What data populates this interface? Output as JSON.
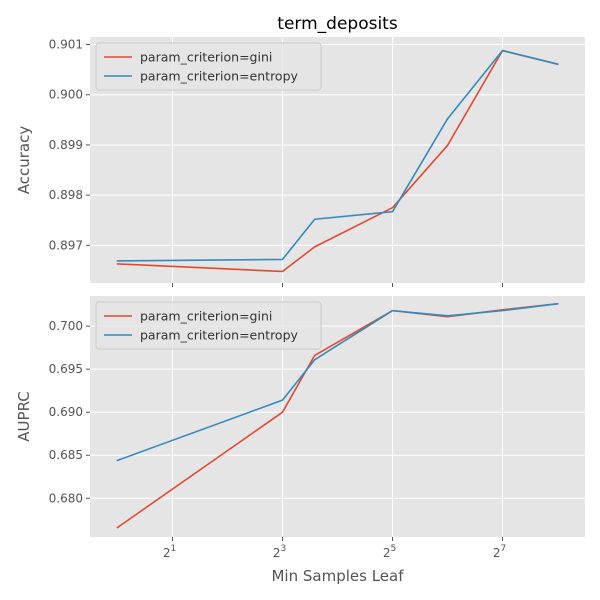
{
  "chart_data": [
    {
      "type": "line",
      "title": "term_deposits",
      "xlabel": "",
      "ylabel": "Accuracy",
      "x_scale": "log2",
      "x": [
        1,
        8,
        12,
        32,
        64,
        128,
        256
      ],
      "xlim": [
        0.707,
        362
      ],
      "xticks": [
        {
          "value": 2,
          "base": "2",
          "exp": "1"
        },
        {
          "value": 8,
          "base": "2",
          "exp": "3"
        },
        {
          "value": 32,
          "base": "2",
          "exp": "5"
        },
        {
          "value": 128,
          "base": "2",
          "exp": "7"
        }
      ],
      "show_xtick_labels": false,
      "ylim": [
        0.89625,
        0.90115
      ],
      "yticks": [
        {
          "value": 0.897,
          "label": "0.897"
        },
        {
          "value": 0.898,
          "label": "0.898"
        },
        {
          "value": 0.899,
          "label": "0.899"
        },
        {
          "value": 0.9,
          "label": "0.900"
        },
        {
          "value": 0.901,
          "label": "0.901"
        }
      ],
      "grid": true,
      "legend": "upper-left",
      "series": [
        {
          "name": "param_criterion=gini",
          "color": "#e24a33",
          "values": [
            0.89663,
            0.89648,
            0.89697,
            0.89775,
            0.89899,
            0.90088,
            0.90061
          ]
        },
        {
          "name": "param_criterion=entropy",
          "color": "#348abd",
          "values": [
            0.89669,
            0.89672,
            0.89752,
            0.89767,
            0.89952,
            0.90088,
            0.90061
          ]
        }
      ]
    },
    {
      "type": "line",
      "title": "",
      "xlabel": "Min Samples Leaf",
      "ylabel": "AUPRC",
      "x_scale": "log2",
      "x": [
        1,
        8,
        12,
        32,
        64,
        128,
        256
      ],
      "xlim": [
        0.707,
        362
      ],
      "xticks": [
        {
          "value": 2,
          "base": "2",
          "exp": "1"
        },
        {
          "value": 8,
          "base": "2",
          "exp": "3"
        },
        {
          "value": 32,
          "base": "2",
          "exp": "5"
        },
        {
          "value": 128,
          "base": "2",
          "exp": "7"
        }
      ],
      "show_xtick_labels": true,
      "ylim": [
        0.6755,
        0.7035
      ],
      "yticks": [
        {
          "value": 0.68,
          "label": "0.680"
        },
        {
          "value": 0.685,
          "label": "0.685"
        },
        {
          "value": 0.69,
          "label": "0.690"
        },
        {
          "value": 0.695,
          "label": "0.695"
        },
        {
          "value": 0.7,
          "label": "0.700"
        }
      ],
      "grid": true,
      "legend": "upper-left",
      "series": [
        {
          "name": "param_criterion=gini",
          "color": "#e24a33",
          "values": [
            0.6766,
            0.69,
            0.6966,
            0.7018,
            0.7011,
            0.7019,
            0.7026
          ]
        },
        {
          "name": "param_criterion=entropy",
          "color": "#348abd",
          "values": [
            0.6844,
            0.6914,
            0.6961,
            0.7018,
            0.7012,
            0.7018,
            0.7026
          ]
        }
      ]
    }
  ]
}
